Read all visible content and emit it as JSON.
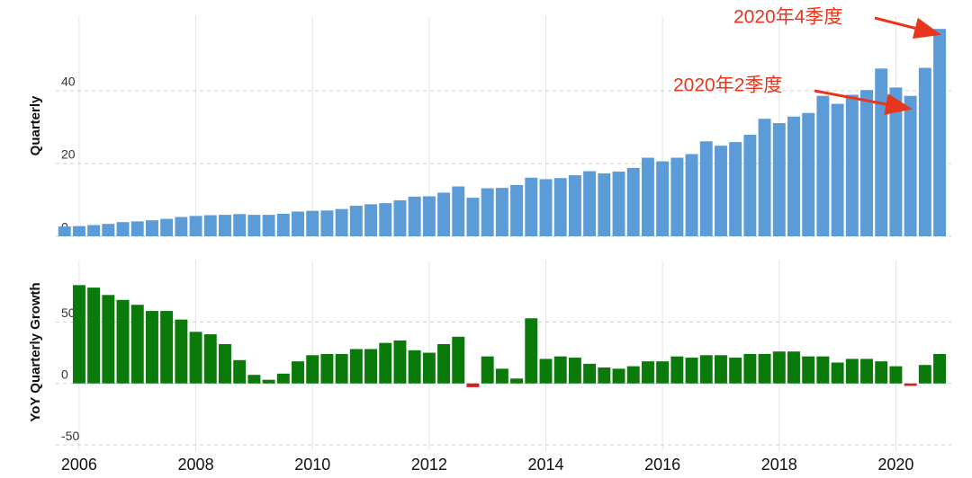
{
  "chart_data": [
    {
      "type": "bar",
      "ylabel": "Quarterly",
      "color": "#5b9bd8",
      "x": [
        2005.75,
        2006,
        2006.25,
        2006.5,
        2006.75,
        2007,
        2007.25,
        2007.5,
        2007.75,
        2008,
        2008.25,
        2008.5,
        2008.75,
        2009,
        2009.25,
        2009.5,
        2009.75,
        2010,
        2010.25,
        2010.5,
        2010.75,
        2011,
        2011.25,
        2011.5,
        2011.75,
        2012,
        2012.25,
        2012.5,
        2012.75,
        2013,
        2013.25,
        2013.5,
        2013.75,
        2014,
        2014.25,
        2014.5,
        2014.75,
        2015,
        2015.25,
        2015.5,
        2015.75,
        2016,
        2016.25,
        2016.5,
        2016.75,
        2017,
        2017.25,
        2017.5,
        2017.75,
        2018,
        2018.25,
        2018.5,
        2018.75,
        2019,
        2019.25,
        2019.5,
        2019.75,
        2020,
        2020.25,
        2020.5,
        2020.75
      ],
      "values": [
        2.7,
        2.8,
        3.1,
        3.4,
        3.9,
        4.1,
        4.4,
        4.8,
        5.3,
        5.6,
        5.8,
        5.9,
        6.1,
        5.9,
        5.9,
        6.2,
        6.8,
        7.0,
        7.1,
        7.5,
        8.4,
        8.8,
        9.1,
        9.9,
        10.9,
        11.0,
        12.0,
        13.7,
        10.6,
        13.2,
        13.3,
        14.1,
        16.1,
        15.7,
        16.0,
        16.8,
        17.9,
        17.3,
        17.8,
        18.8,
        21.6,
        20.6,
        21.6,
        22.6,
        26.1,
        24.9,
        25.9,
        27.9,
        32.3,
        31.1,
        32.9,
        33.9,
        38.6,
        36.4,
        38.9,
        40.2,
        46.1,
        40.9,
        38.6,
        46.3,
        57.0
      ],
      "xlim": [
        2005.6,
        2020.95
      ],
      "ylim": [
        0,
        60.5
      ],
      "yticks": [
        0,
        20,
        40
      ],
      "grid": true,
      "annotations": [
        "2020年4季度",
        "2020年2季度"
      ]
    },
    {
      "type": "bar",
      "ylabel": "YoY Quarterly Growth",
      "color": "#0a7a0a",
      "negative_color": "#d81e1e",
      "x": [
        2006,
        2006.25,
        2006.5,
        2006.75,
        2007,
        2007.25,
        2007.5,
        2007.75,
        2008,
        2008.25,
        2008.5,
        2008.75,
        2009,
        2009.25,
        2009.5,
        2009.75,
        2010,
        2010.25,
        2010.5,
        2010.75,
        2011,
        2011.25,
        2011.5,
        2011.75,
        2012,
        2012.25,
        2012.5,
        2012.75,
        2013,
        2013.25,
        2013.5,
        2013.75,
        2014,
        2014.25,
        2014.5,
        2014.75,
        2015,
        2015.25,
        2015.5,
        2015.75,
        2016,
        2016.25,
        2016.5,
        2016.75,
        2017,
        2017.25,
        2017.5,
        2017.75,
        2018,
        2018.25,
        2018.5,
        2018.75,
        2019,
        2019.25,
        2019.5,
        2019.75,
        2020,
        2020.25,
        2020.5,
        2020.75
      ],
      "values": [
        80,
        78,
        72,
        68,
        64,
        59,
        59,
        52,
        42,
        40,
        32,
        19,
        7,
        3,
        8,
        18,
        23,
        24,
        24,
        28,
        28,
        33,
        35,
        27,
        25,
        32,
        38,
        -3,
        22,
        12,
        4,
        53,
        20,
        22,
        21,
        16,
        13,
        12,
        14,
        18,
        18,
        22,
        21,
        23,
        23,
        21,
        24,
        24,
        26,
        26,
        22,
        22,
        17,
        20,
        20,
        18,
        14,
        -2,
        15,
        24
      ],
      "xlim": [
        2005.6,
        2020.95
      ],
      "ylim": [
        -55,
        100
      ],
      "yticks": [
        -50,
        0,
        50
      ],
      "grid": true,
      "xticks": [
        2006,
        2008,
        2010,
        2012,
        2014,
        2016,
        2018,
        2020
      ]
    }
  ]
}
